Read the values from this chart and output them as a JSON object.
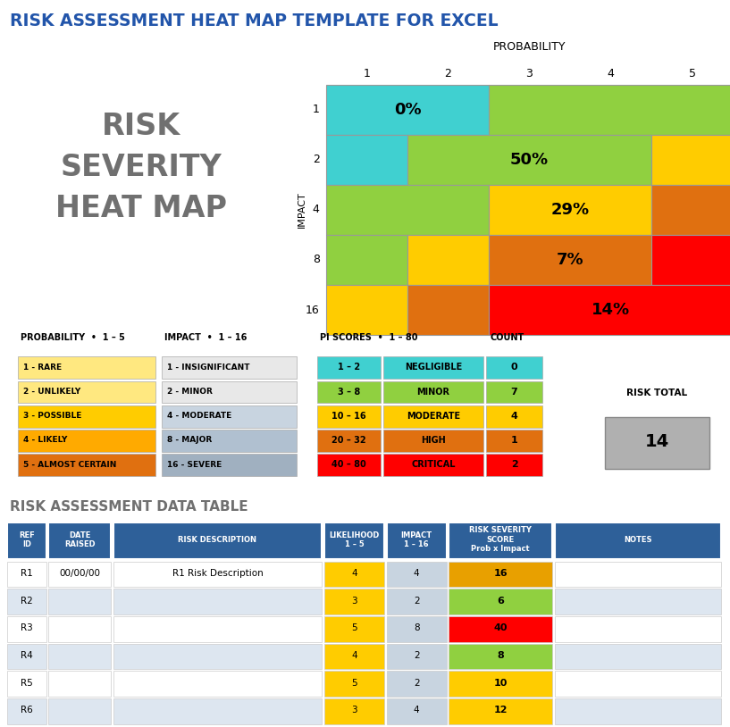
{
  "title": "RISK ASSESSMENT HEAT MAP TEMPLATE FOR EXCEL",
  "bg_color": "#d9d9d9",
  "title_color": "#2255aa",
  "heatmap_cells": [
    [
      0,
      0,
      2,
      "#40d0d0",
      "0%"
    ],
    [
      0,
      2,
      5,
      "#90d040",
      ""
    ],
    [
      1,
      0,
      1,
      "#40d0d0",
      ""
    ],
    [
      1,
      1,
      4,
      "#90d040",
      "50%"
    ],
    [
      1,
      4,
      5,
      "#ffcc00",
      ""
    ],
    [
      2,
      0,
      2,
      "#90d040",
      ""
    ],
    [
      2,
      2,
      4,
      "#ffcc00",
      "29%"
    ],
    [
      2,
      4,
      5,
      "#e07010",
      ""
    ],
    [
      3,
      0,
      1,
      "#90d040",
      ""
    ],
    [
      3,
      1,
      2,
      "#ffcc00",
      ""
    ],
    [
      3,
      2,
      4,
      "#e07010",
      "7%"
    ],
    [
      3,
      4,
      5,
      "#ff0000",
      ""
    ],
    [
      4,
      0,
      1,
      "#ffcc00",
      ""
    ],
    [
      4,
      1,
      2,
      "#e07010",
      ""
    ],
    [
      4,
      2,
      5,
      "#ff0000",
      "14%"
    ]
  ],
  "prob_labels": [
    "1",
    "2",
    "3",
    "4",
    "5"
  ],
  "impact_labels": [
    "1",
    "2",
    "4",
    "8",
    "16"
  ],
  "legend_prob_colors": [
    "#ffe880",
    "#ffe880",
    "#ffcc00",
    "#ffaa00",
    "#e07010"
  ],
  "legend_prob_texts": [
    "1 - RARE",
    "2 - UNLIKELY",
    "3 - POSSIBLE",
    "4 - LIKELY",
    "5 - ALMOST CERTAIN"
  ],
  "legend_impact_colors": [
    "#e8e8e8",
    "#e8e8e8",
    "#c8d4e0",
    "#b0c0d0",
    "#a0b0c0"
  ],
  "legend_impact_texts": [
    "1 - INSIGNIFICANT",
    "2 - MINOR",
    "4 - MODERATE",
    "8 - MAJOR",
    "16 - SEVERE"
  ],
  "pi_ranges": [
    "1 – 2",
    "3 – 8",
    "10 – 16",
    "20 – 32",
    "40 – 80"
  ],
  "pi_labels": [
    "NEGLIGIBLE",
    "MINOR",
    "MODERATE",
    "HIGH",
    "CRITICAL"
  ],
  "pi_counts": [
    "0",
    "7",
    "4",
    "1",
    "2"
  ],
  "pi_colors": [
    "#40d0d0",
    "#90d040",
    "#ffcc00",
    "#e07010",
    "#ff0000"
  ],
  "risk_total": "14",
  "dt_header_color": "#2e6099",
  "dt_rows": [
    [
      "R1",
      "00/00/00",
      "R1 Risk Description",
      "4",
      "4",
      "16",
      "#e8a000"
    ],
    [
      "R2",
      "",
      "",
      "3",
      "2",
      "6",
      "#90d040"
    ],
    [
      "R3",
      "",
      "",
      "5",
      "8",
      "40",
      "#ff0000"
    ],
    [
      "R4",
      "",
      "",
      "4",
      "2",
      "8",
      "#90d040"
    ],
    [
      "R5",
      "",
      "",
      "5",
      "2",
      "10",
      "#ffcc00"
    ],
    [
      "R6",
      "",
      "",
      "3",
      "4",
      "12",
      "#ffcc00"
    ]
  ]
}
